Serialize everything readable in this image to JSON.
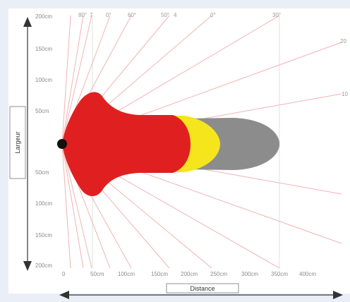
{
  "y_axis": {
    "label": "Largeur",
    "ticks": [
      "200cm",
      "150cm",
      "100cm",
      "50cm",
      "50cm",
      "100cm",
      "150cm",
      "200cm"
    ]
  },
  "x_axis": {
    "label": "Distance",
    "ticks": [
      "0",
      "50cm",
      "100cm",
      "150cm",
      "200cm",
      "250cm",
      "300cm",
      "350cm",
      "400cm"
    ]
  },
  "angle_labels": [
    "80°",
    "7",
    "0°",
    "60°",
    "50°",
    "4",
    "0°",
    "30°",
    "20",
    "10"
  ],
  "colors": {
    "zone_red": "#e02020",
    "zone_yellow": "#f4e51c",
    "zone_grey": "#8c8c8c",
    "rays": "#f2b3b3",
    "source": "#111111"
  }
}
